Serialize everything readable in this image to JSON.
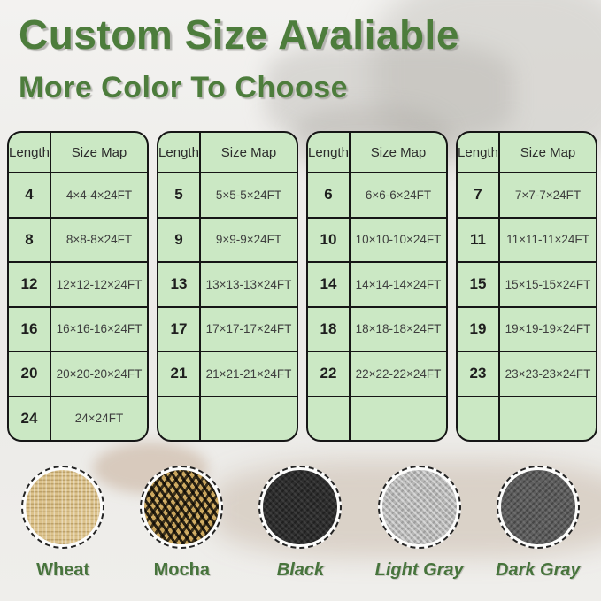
{
  "header": {
    "title": "Custom Size Avaliable",
    "subtitle": "More Color To Choose"
  },
  "tables": [
    {
      "columns": [
        "Length",
        "Size Map"
      ],
      "rows": [
        [
          "4",
          "4×4-4×24FT"
        ],
        [
          "8",
          "8×8-8×24FT"
        ],
        [
          "12",
          "12×12-12×24FT"
        ],
        [
          "16",
          "16×16-16×24FT"
        ],
        [
          "20",
          "20×20-20×24FT"
        ],
        [
          "24",
          "24×24FT"
        ]
      ]
    },
    {
      "columns": [
        "Length",
        "Size Map"
      ],
      "rows": [
        [
          "5",
          "5×5-5×24FT"
        ],
        [
          "9",
          "9×9-9×24FT"
        ],
        [
          "13",
          "13×13-13×24FT"
        ],
        [
          "17",
          "17×17-17×24FT"
        ],
        [
          "21",
          "21×21-21×24FT"
        ],
        [
          "",
          ""
        ]
      ]
    },
    {
      "columns": [
        "Length",
        "Size Map"
      ],
      "rows": [
        [
          "6",
          "6×6-6×24FT"
        ],
        [
          "10",
          "10×10-10×24FT"
        ],
        [
          "14",
          "14×14-14×24FT"
        ],
        [
          "18",
          "18×18-18×24FT"
        ],
        [
          "22",
          "22×22-22×24FT"
        ],
        [
          "",
          ""
        ]
      ]
    },
    {
      "columns": [
        "Length",
        "Size Map"
      ],
      "rows": [
        [
          "7",
          "7×7-7×24FT"
        ],
        [
          "11",
          "11×11-11×24FT"
        ],
        [
          "15",
          "15×15-15×24FT"
        ],
        [
          "19",
          "19×19-19×24FT"
        ],
        [
          "23",
          "23×23-23×24FT"
        ],
        [
          "",
          ""
        ]
      ]
    }
  ],
  "swatches": [
    {
      "name": "Wheat",
      "italic": false,
      "base_color": "#dcc28b"
    },
    {
      "name": "Mocha",
      "italic": false,
      "base_color": "#c8a45c"
    },
    {
      "name": "Black",
      "italic": true,
      "base_color": "#2e2e2e"
    },
    {
      "name": "Light Gray",
      "italic": true,
      "base_color": "#b7b7b6"
    },
    {
      "name": "Dark Gray",
      "italic": true,
      "base_color": "#5e5e5e"
    }
  ],
  "colors": {
    "title_green": "#4d7d3c",
    "label_green": "#47743c",
    "table_background": "#cbe8c4",
    "table_border": "#161616"
  }
}
